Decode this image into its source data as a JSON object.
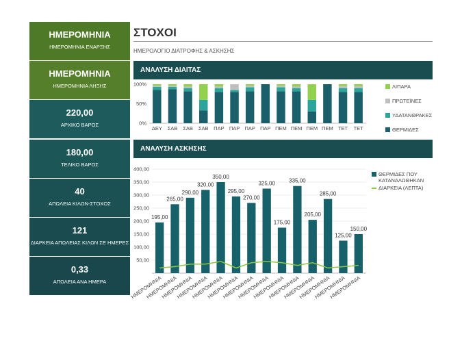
{
  "sidebar": [
    {
      "title": "ΗΜΕΡΟΜΗΝΙΑ",
      "subtitle": "ΗΜΕΡΟΜΗΝΙΑ ΕΝΑΡΞΗΣ"
    },
    {
      "title": "ΗΜΕΡΟΜΗΝΙΑ",
      "subtitle": "ΗΜΕΡΟΜΗΝΙΑ ΛΗΞΗΣ"
    },
    {
      "title": "220,00",
      "subtitle": "ΑΡΧΙΚΟ ΒΑΡΟΣ"
    },
    {
      "title": "180,00",
      "subtitle": "ΤΕΛΙΚΟ ΒΑΡΟΣ"
    },
    {
      "title": "40",
      "subtitle": "ΑΠΩΛΕΙΑ ΚΙΛΩΝ-ΣΤΟΧΟΣ"
    },
    {
      "title": "121",
      "subtitle": "ΔΙΑΡΚΕΙΑ ΑΠΩΛΕΙΑΣ ΚΙΛΩΝ ΣΕ ΗΜΕΡΕΣ"
    },
    {
      "title": "0,33",
      "subtitle": "ΑΠΩΛΕΙΑ ΑΝΑ ΗΜΕΡΑ"
    }
  ],
  "header": {
    "title": "ΣΤΟΧΟΙ",
    "subtitle": "ΗΜΕΡΟΛΟΓΙΟ ΔΙΑΤΡΟΦΗΣ & ΑΣΚΗΣΗΣ"
  },
  "chart_data": [
    {
      "type": "bar",
      "stacked": true,
      "title": "ΑΝΑΛΥΣΗ ΔΙΑΙΤΑΣ",
      "categories": [
        "ΔΕΥ",
        "ΣΑΒ",
        "ΣΑΒ",
        "ΣΑΒ",
        "ΠΑΡ",
        "ΠΑΡ",
        "ΠΑΡ",
        "ΠΑΡ",
        "ΠΕΜ",
        "ΠΕΜ",
        "ΠΕΜ",
        "ΠΕΜ",
        "ΤΕΤ",
        "ΤΕΤ"
      ],
      "series": [
        {
          "name": "ΘΕΡΜΙΔΕΣ",
          "color": "#1a5f6a",
          "values": [
            85,
            87,
            82,
            33,
            80,
            80,
            82,
            100,
            82,
            82,
            30,
            100,
            80,
            80
          ]
        },
        {
          "name": "ΥΔΑΤΑΝΘΡΑΚΕΣ",
          "color": "#2ba59a",
          "values": [
            8,
            6,
            8,
            27,
            10,
            5,
            10,
            0,
            10,
            8,
            30,
            0,
            10,
            10
          ]
        },
        {
          "name": "ΠΡΩΤΕΪΝΕΣ",
          "color": "#bfbfbf",
          "values": [
            3,
            3,
            4,
            0,
            4,
            15,
            4,
            0,
            4,
            4,
            0,
            0,
            5,
            5
          ]
        },
        {
          "name": "ΛΙΠΑΡΑ",
          "color": "#92d050",
          "values": [
            4,
            4,
            6,
            40,
            6,
            0,
            4,
            0,
            4,
            6,
            40,
            0,
            5,
            5
          ]
        }
      ],
      "ylim": [
        0,
        100
      ],
      "yticks": [
        {
          "value": 0,
          "label": "0%"
        },
        {
          "value": 50,
          "label": "50%"
        },
        {
          "value": 100,
          "label": "100%"
        }
      ]
    },
    {
      "type": "bar",
      "title": "ΑΝΑΛΥΣΗ ΑΣΚΗΣΗΣ",
      "categories": [
        "ΗΜΕΡΟΜΗΝΙΑ",
        "ΗΜΕΡΟΜΗΝΙΑ",
        "ΗΜΕΡΟΜΗΝΙΑ",
        "ΗΜΕΡΟΜΗΝΙΑ",
        "ΗΜΕΡΟΜΗΝΙΑ",
        "ΗΜΕΡΟΜΗΝΙΑ",
        "ΗΜΕΡΟΜΗΝΙΑ",
        "ΗΜΕΡΟΜΗΝΙΑ",
        "ΗΜΕΡΟΜΗΝΙΑ",
        "ΗΜΕΡΟΜΗΝΙΑ",
        "ΗΜΕΡΟΜΗΝΙΑ",
        "ΗΜΕΡΟΜΗΝΙΑ",
        "ΗΜΕΡΟΜΗΝΙΑ",
        "ΗΜΕΡΟΜΗΝΙΑ"
      ],
      "series": [
        {
          "name": "ΘΕΡΜΙΔΕΣ ΠΟΥ ΚΑΤΑΝΑΛΩΘΗΚΑΝ",
          "type": "bar",
          "color": "#17616b",
          "values": [
            195,
            265,
            290,
            320,
            350,
            295,
            270,
            325,
            175,
            335,
            205,
            285,
            125,
            150
          ],
          "value_labels": [
            "195,00",
            "265,00",
            "290,00",
            "320,00",
            "350,00",
            "295,00",
            "270,00",
            "325,00",
            "175,00",
            "335,00",
            "205,00",
            "285,00",
            "125,00",
            "150,00"
          ]
        },
        {
          "name": "ΔΙΑΡΚΕΙΑ (ΛΕΠΤΑ)",
          "type": "line",
          "color": "#8dc63f",
          "values": [
            20,
            25,
            35,
            35,
            45,
            20,
            40,
            45,
            40,
            30,
            40,
            20,
            25,
            30
          ]
        }
      ],
      "ylim": [
        0,
        400
      ],
      "yticks": [
        {
          "value": 50,
          "label": "50,00"
        },
        {
          "value": 100,
          "label": "100,00"
        },
        {
          "value": 150,
          "label": "150,00"
        },
        {
          "value": 200,
          "label": "200,00"
        },
        {
          "value": 250,
          "label": "250,00"
        },
        {
          "value": 300,
          "label": "300,00"
        },
        {
          "value": 350,
          "label": "350,00"
        },
        {
          "value": 400,
          "label": "400,00"
        }
      ],
      "grid": true
    }
  ]
}
